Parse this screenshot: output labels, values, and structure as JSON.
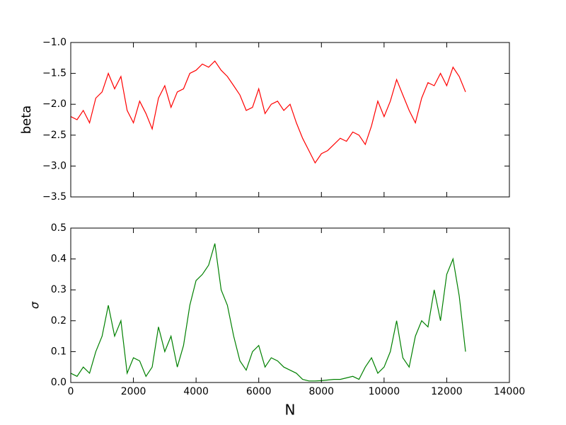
{
  "chart_data": [
    {
      "type": "line",
      "ylabel": "beta",
      "color": "#ff0000",
      "x": [
        0,
        200,
        400,
        600,
        800,
        1000,
        1200,
        1400,
        1600,
        1800,
        2000,
        2200,
        2400,
        2600,
        2800,
        3000,
        3200,
        3400,
        3600,
        3800,
        4000,
        4200,
        4400,
        4600,
        4800,
        5000,
        5200,
        5400,
        5600,
        5800,
        6000,
        6200,
        6400,
        6600,
        6800,
        7000,
        7200,
        7400,
        7600,
        7800,
        8000,
        8200,
        8400,
        8600,
        8800,
        9000,
        9200,
        9400,
        9600,
        9800,
        10000,
        10200,
        10400,
        10600,
        10800,
        11000,
        11200,
        11400,
        11600,
        11800,
        12000,
        12200,
        12400,
        12600
      ],
      "values": [
        -2.2,
        -2.25,
        -2.1,
        -2.3,
        -1.9,
        -1.8,
        -1.5,
        -1.75,
        -1.55,
        -2.1,
        -2.3,
        -1.95,
        -2.15,
        -2.4,
        -1.9,
        -1.7,
        -2.05,
        -1.8,
        -1.75,
        -1.5,
        -1.45,
        -1.35,
        -1.4,
        -1.3,
        -1.45,
        -1.55,
        -1.7,
        -1.85,
        -2.1,
        -2.05,
        -1.75,
        -2.15,
        -2.0,
        -1.95,
        -2.1,
        -2.0,
        -2.3,
        -2.55,
        -2.75,
        -2.95,
        -2.8,
        -2.75,
        -2.65,
        -2.55,
        -2.6,
        -2.45,
        -2.5,
        -2.65,
        -2.35,
        -1.95,
        -2.2,
        -1.95,
        -1.6,
        -1.85,
        -2.1,
        -2.3,
        -1.9,
        -1.65,
        -1.7,
        -1.5,
        -1.7,
        -1.4,
        -1.55,
        -1.8
      ],
      "xlim": [
        0,
        14000
      ],
      "xticks": [
        0,
        2000,
        4000,
        6000,
        8000,
        10000,
        12000,
        14000
      ],
      "ylim": [
        -3.5,
        -1.0
      ],
      "yticks": [
        {
          "value": -3.5,
          "label": "−3.5"
        },
        {
          "value": -3.0,
          "label": "−3.0"
        },
        {
          "value": -2.5,
          "label": "−2.5"
        },
        {
          "value": -2.0,
          "label": "−2.0"
        },
        {
          "value": -1.5,
          "label": "−1.5"
        },
        {
          "value": -1.0,
          "label": "−1.0"
        }
      ]
    },
    {
      "type": "line",
      "ylabel": "σ",
      "xlabel": "N",
      "color": "#008000",
      "x": [
        0,
        200,
        400,
        600,
        800,
        1000,
        1200,
        1400,
        1600,
        1800,
        2000,
        2200,
        2400,
        2600,
        2800,
        3000,
        3200,
        3400,
        3600,
        3800,
        4000,
        4200,
        4400,
        4600,
        4800,
        5000,
        5200,
        5400,
        5600,
        5800,
        6000,
        6200,
        6400,
        6600,
        6800,
        7000,
        7200,
        7400,
        7600,
        7800,
        8000,
        8200,
        8400,
        8600,
        8800,
        9000,
        9200,
        9400,
        9600,
        9800,
        10000,
        10200,
        10400,
        10600,
        10800,
        11000,
        11200,
        11400,
        11600,
        11800,
        12000,
        12200,
        12400,
        12600
      ],
      "values": [
        0.03,
        0.02,
        0.05,
        0.03,
        0.1,
        0.15,
        0.25,
        0.15,
        0.2,
        0.03,
        0.08,
        0.07,
        0.02,
        0.05,
        0.18,
        0.1,
        0.15,
        0.05,
        0.12,
        0.25,
        0.33,
        0.35,
        0.38,
        0.45,
        0.3,
        0.25,
        0.15,
        0.07,
        0.04,
        0.1,
        0.12,
        0.05,
        0.08,
        0.07,
        0.05,
        0.04,
        0.03,
        0.01,
        0.005,
        0.005,
        0.006,
        0.008,
        0.01,
        0.01,
        0.015,
        0.02,
        0.01,
        0.05,
        0.08,
        0.03,
        0.05,
        0.1,
        0.2,
        0.08,
        0.05,
        0.15,
        0.2,
        0.18,
        0.3,
        0.2,
        0.35,
        0.4,
        0.28,
        0.1
      ],
      "xlim": [
        0,
        14000
      ],
      "xticks": [
        0,
        2000,
        4000,
        6000,
        8000,
        10000,
        12000,
        14000
      ],
      "ylim": [
        0,
        0.5
      ],
      "yticks": [
        {
          "value": 0,
          "label": "0.0"
        },
        {
          "value": 0.1,
          "label": "0.1"
        },
        {
          "value": 0.2,
          "label": "0.2"
        },
        {
          "value": 0.3,
          "label": "0.3"
        },
        {
          "value": 0.4,
          "label": "0.4"
        },
        {
          "value": 0.5,
          "label": "0.5"
        }
      ]
    }
  ]
}
